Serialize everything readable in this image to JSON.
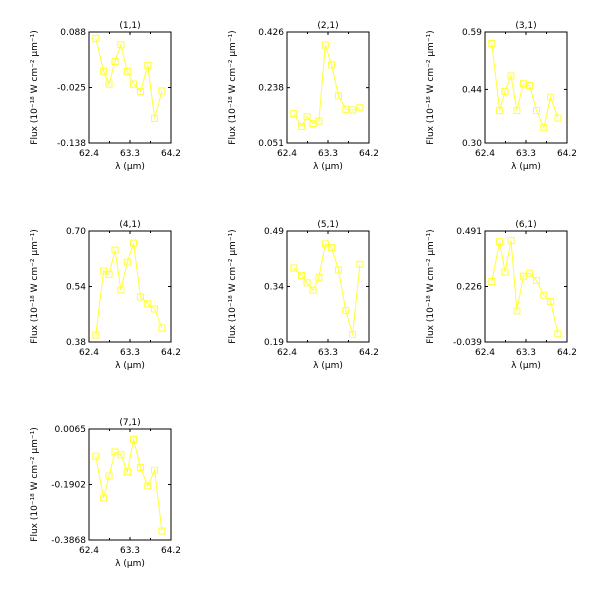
{
  "figure": {
    "xlabel": "λ (μm)",
    "ylabel": "Flux (10⁻¹⁸ W cm⁻² μm⁻¹)",
    "series_color": "#ffff33"
  },
  "chart_data": [
    {
      "type": "line",
      "title": "(1,1)",
      "xlim": [
        62.4,
        64.2
      ],
      "ylim": [
        -0.138,
        0.088
      ],
      "xticks": [
        "62.4",
        "63.3",
        "64.2"
      ],
      "yticks": [
        "-0.138",
        "-0.025",
        "0.088"
      ],
      "x": [
        62.55,
        62.72,
        62.84,
        62.97,
        63.1,
        63.24,
        63.38,
        63.53,
        63.69,
        63.84,
        64.0
      ],
      "y": [
        0.075,
        0.008,
        -0.018,
        0.028,
        0.062,
        0.008,
        -0.018,
        -0.033,
        0.02,
        -0.088,
        -0.032
      ]
    },
    {
      "type": "line",
      "title": "(2,1)",
      "xlim": [
        62.4,
        64.2
      ],
      "ylim": [
        0.051,
        0.426
      ],
      "xticks": [
        "62.4",
        "63.3",
        "64.2"
      ],
      "yticks": [
        "0.051",
        "0.238",
        "0.426"
      ],
      "x": [
        62.55,
        62.72,
        62.84,
        62.97,
        63.1,
        63.24,
        63.38,
        63.53,
        63.69,
        63.84,
        64.0
      ],
      "y": [
        0.15,
        0.107,
        0.14,
        0.117,
        0.125,
        0.382,
        0.315,
        0.21,
        0.165,
        0.162,
        0.17
      ]
    },
    {
      "type": "line",
      "title": "(3,1)",
      "xlim": [
        62.4,
        64.2
      ],
      "ylim": [
        0.3,
        0.59
      ],
      "xticks": [
        "62.4",
        "63.3",
        "64.2"
      ],
      "yticks": [
        "0.30",
        "0.44",
        "0.59"
      ],
      "x": [
        62.55,
        62.72,
        62.84,
        62.97,
        63.1,
        63.24,
        63.38,
        63.53,
        63.69,
        63.84,
        64.0
      ],
      "y": [
        0.56,
        0.385,
        0.435,
        0.475,
        0.385,
        0.455,
        0.45,
        0.385,
        0.34,
        0.42,
        0.365
      ]
    },
    {
      "type": "line",
      "title": "(4,1)",
      "xlim": [
        62.4,
        64.2
      ],
      "ylim": [
        0.38,
        0.7
      ],
      "xticks": [
        "62.4",
        "63.3",
        "64.2"
      ],
      "yticks": [
        "0.38",
        "0.54",
        "0.70"
      ],
      "x": [
        62.55,
        62.72,
        62.84,
        62.97,
        63.1,
        63.24,
        63.38,
        63.53,
        63.69,
        63.84,
        64.0
      ],
      "y": [
        0.4,
        0.585,
        0.575,
        0.645,
        0.53,
        0.61,
        0.665,
        0.51,
        0.49,
        0.475,
        0.42
      ]
    },
    {
      "type": "line",
      "title": "(5,1)",
      "xlim": [
        62.4,
        64.2
      ],
      "ylim": [
        0.19,
        0.49
      ],
      "xticks": [
        "62.4",
        "63.3",
        "64.2"
      ],
      "yticks": [
        "0.19",
        "0.34",
        "0.49"
      ],
      "x": [
        62.55,
        62.72,
        62.84,
        62.97,
        63.1,
        63.24,
        63.38,
        63.53,
        63.69,
        63.84,
        64.0
      ],
      "y": [
        0.39,
        0.37,
        0.35,
        0.33,
        0.365,
        0.455,
        0.445,
        0.385,
        0.275,
        0.21,
        0.4
      ]
    },
    {
      "type": "line",
      "title": "(6,1)",
      "xlim": [
        62.4,
        64.2
      ],
      "ylim": [
        -0.039,
        0.491
      ],
      "xticks": [
        "62.4",
        "63.3",
        "64.2"
      ],
      "yticks": [
        "-0.039",
        "0.226",
        "0.491"
      ],
      "x": [
        62.55,
        62.72,
        62.84,
        62.97,
        63.1,
        63.24,
        63.38,
        63.53,
        63.69,
        63.84,
        64.0
      ],
      "y": [
        0.25,
        0.44,
        0.295,
        0.445,
        0.11,
        0.275,
        0.29,
        0.255,
        0.185,
        0.155,
        0.0
      ]
    },
    {
      "type": "line",
      "title": "(7,1)",
      "xlim": [
        62.4,
        64.2
      ],
      "ylim": [
        -0.3868,
        0.0065
      ],
      "xticks": [
        "62.4",
        "63.3",
        "64.2"
      ],
      "yticks": [
        "-0.3868",
        "-0.1902",
        "0.0065"
      ],
      "x": [
        62.55,
        62.72,
        62.84,
        62.97,
        63.1,
        63.24,
        63.38,
        63.53,
        63.69,
        63.84,
        64.0
      ],
      "y": [
        -0.09,
        -0.238,
        -0.16,
        -0.075,
        -0.085,
        -0.145,
        -0.03,
        -0.13,
        -0.195,
        -0.14,
        -0.355
      ]
    }
  ]
}
